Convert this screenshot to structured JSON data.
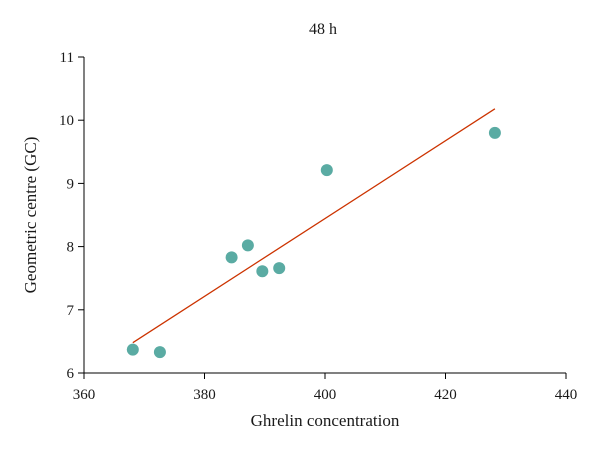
{
  "chart_data": {
    "type": "scatter",
    "title": "48 h",
    "xlabel": "Ghrelin concentration",
    "ylabel": "Geometric centre (GC)",
    "xlim": [
      360,
      440
    ],
    "ylim": [
      6,
      11
    ],
    "xticks": [
      360,
      380,
      400,
      420,
      440
    ],
    "yticks": [
      6,
      7,
      8,
      9,
      10,
      11
    ],
    "grid": false,
    "legend": "none",
    "series": [
      {
        "points": [
          {
            "x": 368.1,
            "y": 6.37
          },
          {
            "x": 372.6,
            "y": 6.33
          },
          {
            "x": 384.5,
            "y": 7.83
          },
          {
            "x": 387.2,
            "y": 8.02
          },
          {
            "x": 389.6,
            "y": 7.61
          },
          {
            "x": 392.4,
            "y": 7.66
          },
          {
            "x": 400.3,
            "y": 9.21
          },
          {
            "x": 428.2,
            "y": 9.8
          }
        ],
        "color": "#5aaba3"
      }
    ],
    "fit_line": {
      "x": [
        368.1,
        428.2
      ],
      "y": [
        6.48,
        10.18
      ],
      "color": "#cc3300"
    }
  }
}
